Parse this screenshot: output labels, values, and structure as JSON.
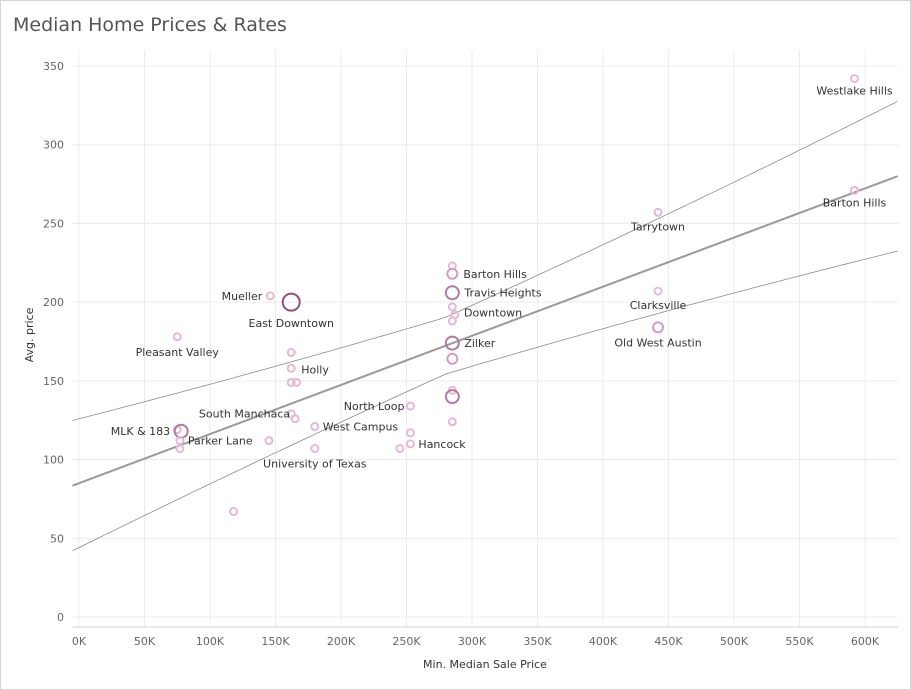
{
  "title": "Median Home Prices & Rates",
  "chart_data": {
    "type": "scatter",
    "title": "Median Home Prices & Rates",
    "xlabel": "Min. Median Sale Price",
    "ylabel": "Avg. price",
    "xlim": [
      0,
      625000
    ],
    "ylim": [
      0,
      360
    ],
    "x_ticks": [
      0,
      50000,
      100000,
      150000,
      200000,
      250000,
      300000,
      350000,
      400000,
      450000,
      500000,
      550000,
      600000
    ],
    "x_tick_labels": [
      "0K",
      "50K",
      "100K",
      "150K",
      "200K",
      "250K",
      "300K",
      "350K",
      "400K",
      "450K",
      "500K",
      "550K",
      "600K"
    ],
    "y_ticks": [
      0,
      50,
      100,
      150,
      200,
      250,
      300,
      350
    ],
    "y_tick_labels": [
      "0",
      "50",
      "100",
      "150",
      "200",
      "250",
      "300",
      "350"
    ],
    "grid": true,
    "trend_line": {
      "intercept": 85,
      "slope_per_100k": 31.2
    },
    "points": [
      {
        "x": 592000,
        "y": 342,
        "size": 1,
        "label": "Westlake Hills"
      },
      {
        "x": 592000,
        "y": 271,
        "size": 1,
        "label": "Barton Hills"
      },
      {
        "x": 442000,
        "y": 257,
        "size": 1,
        "label": "Tarrytown"
      },
      {
        "x": 442000,
        "y": 207,
        "size": 1,
        "label": "Clarksville"
      },
      {
        "x": 442000,
        "y": 184,
        "size": 2,
        "label": "Old West Austin"
      },
      {
        "x": 285000,
        "y": 223,
        "size": 1,
        "label": ""
      },
      {
        "x": 285000,
        "y": 218,
        "size": 2,
        "label": "Barton Hills"
      },
      {
        "x": 285000,
        "y": 206,
        "size": 3,
        "label": "Travis Heights"
      },
      {
        "x": 285000,
        "y": 197,
        "size": 1,
        "label": ""
      },
      {
        "x": 287000,
        "y": 192,
        "size": 1,
        "label": "Downtown"
      },
      {
        "x": 285000,
        "y": 188,
        "size": 1,
        "label": ""
      },
      {
        "x": 285000,
        "y": 174,
        "size": 3,
        "label": "Zilker"
      },
      {
        "x": 285000,
        "y": 164,
        "size": 2,
        "label": ""
      },
      {
        "x": 285000,
        "y": 144,
        "size": 1,
        "label": ""
      },
      {
        "x": 285000,
        "y": 140,
        "size": 3,
        "label": ""
      },
      {
        "x": 285000,
        "y": 124,
        "size": 1,
        "label": ""
      },
      {
        "x": 253000,
        "y": 134,
        "size": 1,
        "label": "North Loop"
      },
      {
        "x": 253000,
        "y": 117,
        "size": 1,
        "label": ""
      },
      {
        "x": 253000,
        "y": 110,
        "size": 1,
        "label": "Hancock"
      },
      {
        "x": 245000,
        "y": 107,
        "size": 1,
        "label": ""
      },
      {
        "x": 146000,
        "y": 204,
        "size": 1,
        "label": "Mueller"
      },
      {
        "x": 162000,
        "y": 200,
        "size": 4,
        "label": "East Downtown"
      },
      {
        "x": 162000,
        "y": 168,
        "size": 1,
        "label": ""
      },
      {
        "x": 162000,
        "y": 158,
        "size": 1,
        "label": "Holly"
      },
      {
        "x": 162000,
        "y": 149,
        "size": 1,
        "label": ""
      },
      {
        "x": 166000,
        "y": 149,
        "size": 1,
        "label": ""
      },
      {
        "x": 162000,
        "y": 129,
        "size": 1,
        "label": ""
      },
      {
        "x": 165000,
        "y": 126,
        "size": 1,
        "label": "South Manchaca"
      },
      {
        "x": 180000,
        "y": 121,
        "size": 1,
        "label": "West Campus"
      },
      {
        "x": 180000,
        "y": 107,
        "size": 1,
        "label": "University of Texas"
      },
      {
        "x": 145000,
        "y": 112,
        "size": 1,
        "label": ""
      },
      {
        "x": 75000,
        "y": 178,
        "size": 1,
        "label": "Pleasant Valley"
      },
      {
        "x": 75000,
        "y": 119,
        "size": 1,
        "label": ""
      },
      {
        "x": 78000,
        "y": 118,
        "size": 3,
        "label": "MLK & 183"
      },
      {
        "x": 77000,
        "y": 112,
        "size": 1,
        "label": "Parker Lane"
      },
      {
        "x": 77000,
        "y": 107,
        "size": 1,
        "label": ""
      },
      {
        "x": 118000,
        "y": 67,
        "size": 1,
        "label": ""
      }
    ]
  }
}
